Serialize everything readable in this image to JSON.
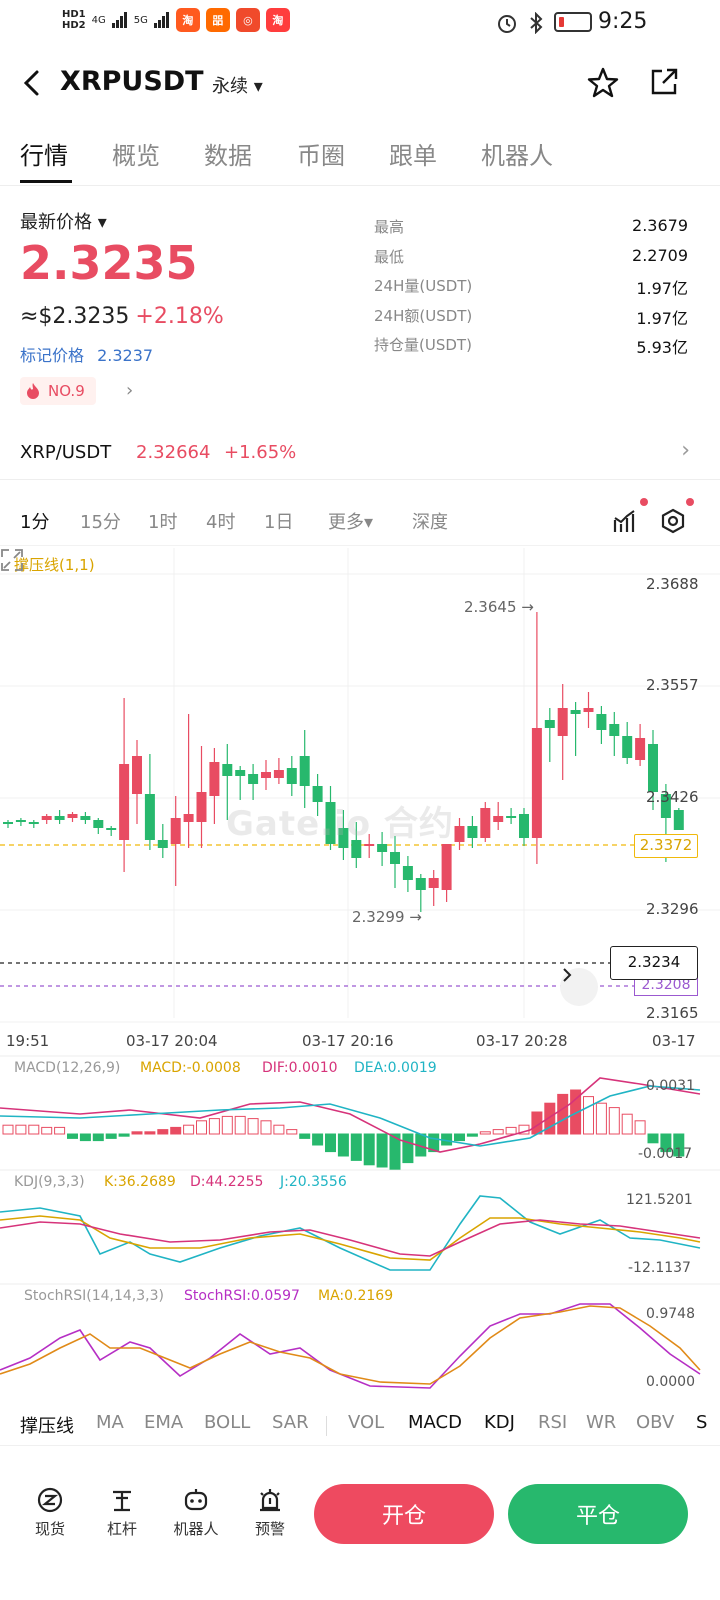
{
  "status_bar": {
    "hd1": "HD1",
    "hd2": "HD2",
    "sig1": "4G",
    "sig2": "5G",
    "apps": [
      {
        "name": "taobao",
        "glyph": "淘",
        "color": "#ff5a1f"
      },
      {
        "name": "meituan",
        "glyph": "㗊",
        "color": "#ff6a00"
      },
      {
        "name": "weibo",
        "glyph": "◎",
        "color": "#f04a2b"
      },
      {
        "name": "taobao2",
        "glyph": "淘",
        "color": "#ff3d3d"
      }
    ],
    "time": "9:25"
  },
  "header": {
    "symbol": "XRPUSDT",
    "contract_type": "永续 ▾"
  },
  "tabs": [
    "行情",
    "概览",
    "数据",
    "币圈",
    "跟单",
    "机器人"
  ],
  "price": {
    "latest_label": "最新价格 ▾",
    "last": "2.3235",
    "usd_approx": "≈$2.3235",
    "change_pct": "+2.18%",
    "mark_label": "标记价格",
    "mark_value": "2.3237",
    "rank": "NO.9"
  },
  "stats": [
    {
      "label": "最高",
      "value": "2.3679"
    },
    {
      "label": "最低",
      "value": "2.2709"
    },
    {
      "label": "24H量(USDT)",
      "value": "1.97亿"
    },
    {
      "label": "24H额(USDT)",
      "value": "1.97亿"
    },
    {
      "label": "持仓量(USDT)",
      "value": "5.93亿"
    }
  ],
  "spot": {
    "pair": "XRP/USDT",
    "price": "2.32664",
    "change": "+1.65%"
  },
  "intervals": [
    "1分",
    "15分",
    "1时",
    "4时",
    "1日",
    "更多▾",
    "深度"
  ],
  "chart": {
    "sr_label": "撑压线(1,1)",
    "y_ticks": [
      "2.3688",
      "2.3557",
      "2.3426",
      "2.3296",
      "2.3165"
    ],
    "x_ticks": [
      "19:51",
      "03-17 20:04",
      "03-17 20:16",
      "03-17 20:28",
      "03-17"
    ],
    "high_annotation": "2.3645 →",
    "low_annotation": "2.3299 →",
    "current_price_tag": "2.3372",
    "crosshair_price": "2.3234",
    "purple_line_price": "2.3208",
    "watermark": "Gate.io 合约",
    "macd": {
      "name": "MACD(12,26,9)",
      "macd": "MACD:-0.0008",
      "dif": "DIF:0.0010",
      "dea": "DEA:0.0019",
      "top": "0.0031",
      "bottom": "-0.0017"
    },
    "kdj": {
      "name": "KDJ(9,3,3)",
      "k": "K:36.2689",
      "d": "D:44.2255",
      "j": "J:20.3556",
      "top": "121.5201",
      "bottom": "-12.1137"
    },
    "stochrsi": {
      "name": "StochRSI(14,14,3,3)",
      "value": "StochRSI:0.0597",
      "ma": "MA:0.2169",
      "top": "0.9748",
      "bottom": "0.0000"
    }
  },
  "indicator_tabs": [
    "撑压线",
    "MA",
    "EMA",
    "BOLL",
    "SAR",
    "VOL",
    "MACD",
    "KDJ",
    "RSI",
    "WR",
    "OBV",
    "S"
  ],
  "bottom_nav": [
    "现货",
    "杠杆",
    "机器人",
    "预警"
  ],
  "actions": {
    "open": "开仓",
    "close": "平仓"
  },
  "colors": {
    "up": "#e84c62",
    "down": "#27b86d",
    "accent": "#f0b90b"
  }
}
